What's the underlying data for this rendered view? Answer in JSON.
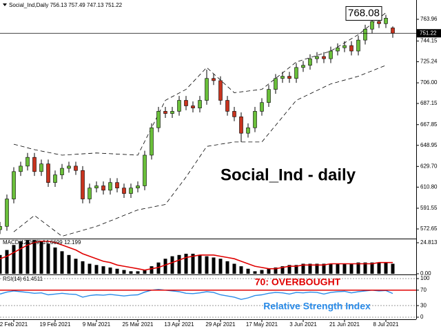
{
  "chart_data": [
    {
      "type": "candlestick",
      "header": "Social_Ind,Daily  756.13 757.49 747.13 751.22",
      "title": "Social_Ind - daily",
      "open": [
        572,
        575,
        600,
        625,
        630,
        638,
        625,
        632,
        615,
        622,
        628,
        630,
        626,
        600,
        610,
        612,
        608,
        615,
        610,
        605,
        610,
        612,
        640,
        665,
        680,
        678,
        680,
        690,
        685,
        683,
        690,
        710,
        708,
        690,
        680,
        675,
        660,
        665,
        680,
        688,
        700,
        710,
        712,
        710,
        720,
        722,
        728,
        730,
        728,
        735,
        738,
        740,
        735,
        745,
        755,
        762,
        760,
        756.13
      ],
      "high": [
        579,
        604,
        629,
        634,
        642,
        642,
        636,
        636,
        626,
        632,
        634,
        634,
        630,
        614,
        616,
        616,
        619,
        619,
        614,
        614,
        616,
        644,
        669,
        684,
        684,
        684,
        694,
        694,
        689,
        694,
        718,
        714,
        712,
        694,
        684,
        679,
        669,
        684,
        692,
        704,
        714,
        716,
        716,
        724,
        726,
        732,
        734,
        734,
        739,
        742,
        744,
        744,
        749,
        759,
        766,
        766,
        768.08,
        757.49
      ],
      "low": [
        568,
        571,
        596,
        621,
        626,
        621,
        621,
        611,
        611,
        618,
        624,
        622,
        596,
        596,
        606,
        604,
        604,
        606,
        601,
        601,
        606,
        608,
        636,
        661,
        674,
        674,
        676,
        681,
        679,
        679,
        686,
        704,
        686,
        676,
        671,
        652,
        656,
        661,
        676,
        684,
        696,
        706,
        706,
        706,
        716,
        718,
        724,
        724,
        724,
        731,
        734,
        731,
        731,
        741,
        751,
        756,
        756,
        747.13
      ],
      "close": [
        575,
        600,
        625,
        630,
        638,
        625,
        632,
        615,
        622,
        628,
        630,
        626,
        600,
        610,
        612,
        608,
        615,
        610,
        605,
        610,
        612,
        640,
        665,
        680,
        678,
        680,
        690,
        685,
        683,
        690,
        710,
        708,
        690,
        680,
        675,
        660,
        665,
        680,
        688,
        700,
        710,
        712,
        710,
        720,
        722,
        728,
        730,
        728,
        735,
        738,
        740,
        735,
        745,
        755,
        762,
        760,
        765,
        751.22
      ],
      "up_color": "#6abf3a",
      "down_color": "#c8331e",
      "bands": {
        "x": [
          2,
          5,
          9,
          14,
          20,
          24,
          27,
          30,
          34,
          38,
          43,
          48,
          52,
          56
        ],
        "upper": [
          650,
          645,
          640,
          642,
          640,
          690,
          700,
          720,
          697,
          700,
          725,
          735,
          750,
          770
        ],
        "lower": [
          570,
          585,
          566,
          575,
          590,
          595,
          620,
          648,
          652,
          652,
          690,
          705,
          712,
          722
        ]
      },
      "ylim": [
        563.84,
        781.58
      ],
      "yticks": [
        763.96,
        744.15,
        725.24,
        {
          "value": 706,
          "label": "706.00"
        },
        687.15,
        667.85,
        648.95,
        {
          "value": 629.7,
          "label": "629.70"
        },
        {
          "value": 610.8,
          "label": "610.80"
        },
        591.55,
        572.65
      ],
      "price_line": 751.22,
      "high_label": 768.08,
      "xticks": [
        {
          "value": 2,
          "label": "2 Feb 2021"
        },
        {
          "value": 8,
          "label": "19 Feb 2021"
        },
        {
          "value": 14,
          "label": "9 Mar 2021"
        },
        {
          "value": 20,
          "label": "25 Mar 2021"
        },
        {
          "value": 26,
          "label": "13 Apr 2021"
        },
        {
          "value": 32,
          "label": "29 Apr 2021"
        },
        {
          "value": 38,
          "label": "17 May 2021"
        },
        {
          "value": 44,
          "label": "3 Jun 2021"
        },
        {
          "value": 50,
          "label": "21 Jun 2021"
        },
        {
          "value": 56,
          "label": "8 Jul 2021"
        }
      ]
    },
    {
      "type": "macd",
      "label": "MACD(12,26,9) 14.6699 12.199",
      "histogram": [
        15,
        19,
        23,
        26,
        27,
        27,
        26,
        24,
        21,
        18,
        15,
        12,
        10,
        8,
        7,
        6,
        5,
        4,
        3,
        2,
        2,
        3,
        6,
        9,
        12,
        14,
        15,
        16,
        16,
        15,
        14,
        13,
        12,
        10,
        8,
        6,
        4,
        2,
        3,
        4,
        5,
        6,
        7,
        7,
        8,
        8,
        8,
        8,
        8,
        8,
        8,
        8,
        9,
        9,
        9,
        9,
        9,
        8
      ],
      "signal": [
        12,
        14,
        17,
        20,
        23,
        25,
        26,
        26,
        25,
        23,
        21,
        19,
        16,
        14,
        12,
        10,
        9,
        7,
        6,
        5,
        4,
        3,
        4,
        5,
        7,
        9,
        11,
        13,
        14,
        15,
        15,
        15,
        14,
        13,
        12,
        10,
        8,
        6,
        5,
        4,
        4,
        5,
        6,
        6,
        7,
        7,
        7,
        7,
        8,
        8,
        8,
        8,
        8,
        8,
        8,
        9,
        9,
        9
      ],
      "signal_color": "#e00000",
      "ylim": [
        -0.55,
        28.12
      ],
      "yticks": [
        {
          "value": 0,
          "label": "0.00"
        },
        24.813
      ]
    },
    {
      "type": "rsi",
      "label": "RSI(14) 61.4511",
      "values": [
        60,
        65,
        68,
        66,
        64,
        62,
        63,
        58,
        60,
        62,
        60,
        59,
        52,
        56,
        58,
        57,
        59,
        57,
        55,
        57,
        58,
        65,
        70,
        72,
        70,
        68,
        66,
        62,
        61,
        63,
        66,
        64,
        58,
        55,
        52,
        46,
        50,
        56,
        58,
        62,
        64,
        63,
        60,
        64,
        63,
        65,
        64,
        60,
        64,
        66,
        67,
        63,
        66,
        68,
        70,
        68,
        69,
        61.4511
      ],
      "color": "#2a8be8",
      "overbought": 70,
      "ylim": [
        -5.4,
        110.7
      ],
      "yticks": [
        100,
        70,
        30,
        0
      ],
      "annotations": [
        "70: OVERBOUGHT",
        "Relative Strength Index"
      ]
    }
  ]
}
